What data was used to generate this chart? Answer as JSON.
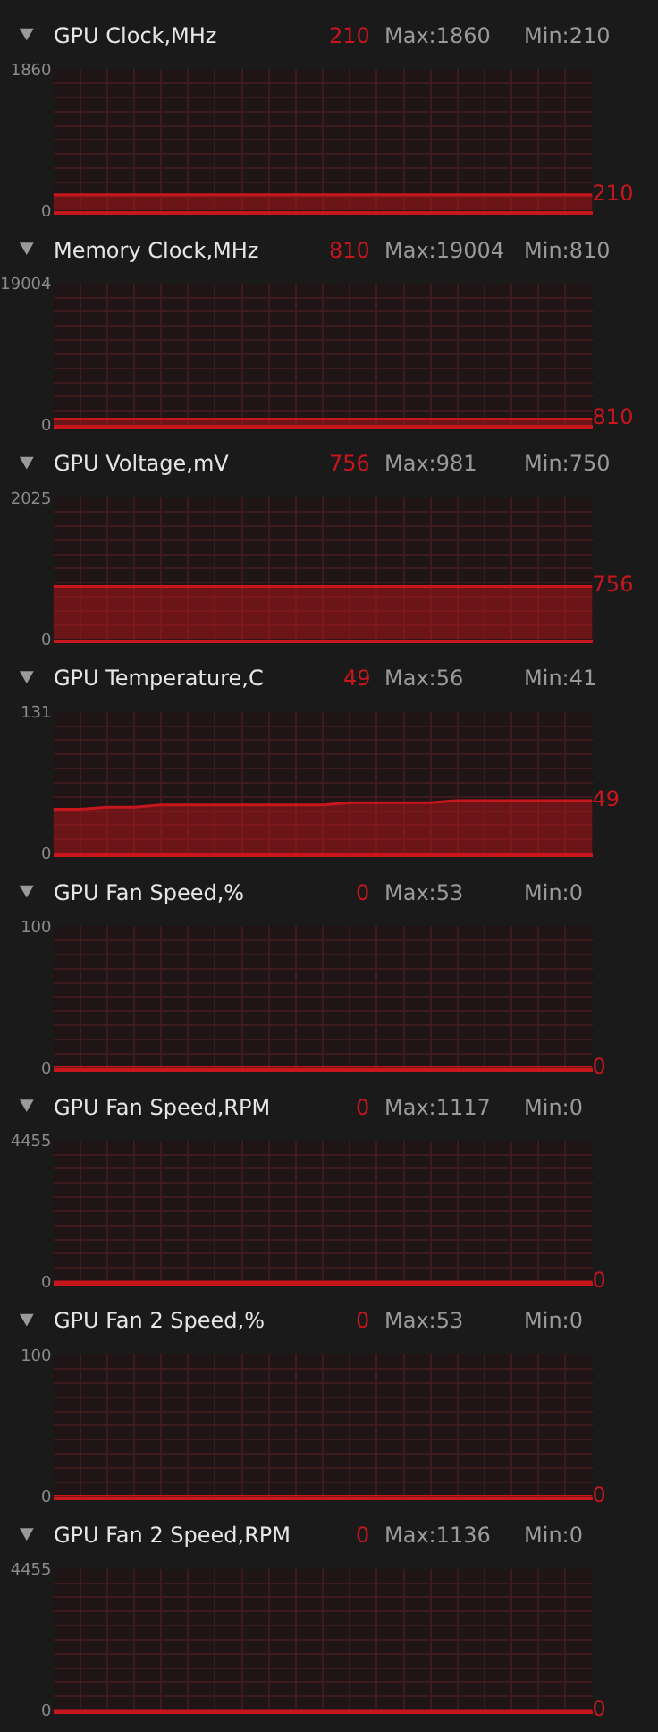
{
  "chart_data": [
    {
      "type": "area",
      "title": "GPU Clock,MHz",
      "annotations": [
        "210",
        "Max:1860",
        "Min:210"
      ],
      "categories": [
        null,
        null,
        null,
        null,
        null,
        null,
        null,
        null,
        null,
        null,
        null,
        null,
        null,
        null,
        null,
        null,
        null,
        null,
        null,
        null,
        null
      ],
      "values": [
        210,
        210,
        210,
        210,
        210,
        210,
        210,
        210,
        210,
        210,
        210,
        210,
        210,
        210,
        210,
        210,
        210,
        210,
        210,
        210,
        210
      ],
      "value_labels": [
        null,
        null,
        null,
        null,
        null,
        null,
        null,
        null,
        null,
        null,
        null,
        null,
        null,
        null,
        null,
        null,
        null,
        null,
        null,
        null,
        "210"
      ],
      "color": "#c8161d",
      "ylim": [
        0,
        1860
      ],
      "yticks": [
        0,
        {
          "value": 186,
          "label": null
        },
        {
          "value": 372,
          "label": null
        },
        {
          "value": 558,
          "label": null
        },
        {
          "value": 744,
          "label": null
        },
        {
          "value": 930,
          "label": null
        },
        {
          "value": 1116,
          "label": null
        },
        {
          "value": 1302,
          "label": null
        },
        {
          "value": 1488,
          "label": null
        },
        {
          "value": 1674,
          "label": null
        },
        1860
      ],
      "grid": true,
      "tick_labels": "y"
    },
    {
      "type": "area",
      "title": "Memory Clock,MHz",
      "annotations": [
        "810",
        "Max:19004",
        "Min:810"
      ],
      "categories": [
        null,
        null,
        null,
        null,
        null,
        null,
        null,
        null,
        null,
        null,
        null,
        null,
        null,
        null,
        null,
        null,
        null,
        null,
        null,
        null,
        null
      ],
      "values": [
        810,
        810,
        810,
        810,
        810,
        810,
        810,
        810,
        810,
        810,
        810,
        810,
        810,
        810,
        810,
        810,
        810,
        810,
        810,
        810,
        810
      ],
      "value_labels": [
        null,
        null,
        null,
        null,
        null,
        null,
        null,
        null,
        null,
        null,
        null,
        null,
        null,
        null,
        null,
        null,
        null,
        null,
        null,
        null,
        "810"
      ],
      "color": "#c8161d",
      "ylim": [
        0,
        19004
      ],
      "yticks": [
        0,
        {
          "value": 1900.4,
          "label": null
        },
        {
          "value": 3800.8,
          "label": null
        },
        {
          "value": 5701.2,
          "label": null
        },
        {
          "value": 7601.6,
          "label": null
        },
        {
          "value": 9502,
          "label": null
        },
        {
          "value": 11402.4,
          "label": null
        },
        {
          "value": 13302.8,
          "label": null
        },
        {
          "value": 15203.2,
          "label": null
        },
        {
          "value": 17103.6,
          "label": null
        },
        19004
      ],
      "grid": true,
      "tick_labels": "y"
    },
    {
      "type": "area",
      "title": "GPU Voltage,mV",
      "annotations": [
        "756",
        "Max:981",
        "Min:750"
      ],
      "categories": [
        null,
        null,
        null,
        null,
        null,
        null,
        null,
        null,
        null,
        null,
        null,
        null,
        null,
        null,
        null,
        null,
        null,
        null,
        null,
        null,
        null
      ],
      "values": [
        756,
        756,
        756,
        756,
        756,
        756,
        756,
        756,
        756,
        756,
        756,
        756,
        756,
        756,
        756,
        756,
        756,
        756,
        756,
        756,
        756
      ],
      "value_labels": [
        null,
        null,
        null,
        null,
        null,
        null,
        null,
        null,
        null,
        null,
        null,
        null,
        null,
        null,
        null,
        null,
        null,
        null,
        null,
        null,
        "756"
      ],
      "color": "#c8161d",
      "ylim": [
        0,
        2025
      ],
      "yticks": [
        0,
        {
          "value": 202.5,
          "label": null
        },
        {
          "value": 405,
          "label": null
        },
        {
          "value": 607.5,
          "label": null
        },
        {
          "value": 810,
          "label": null
        },
        {
          "value": 1012.5,
          "label": null
        },
        {
          "value": 1215,
          "label": null
        },
        {
          "value": 1417.5,
          "label": null
        },
        {
          "value": 1620,
          "label": null
        },
        {
          "value": 1822.5,
          "label": null
        },
        2025
      ],
      "grid": true,
      "tick_labels": "y"
    },
    {
      "type": "area",
      "title": "GPU Temperature,C",
      "annotations": [
        "49",
        "Max:56",
        "Min:41"
      ],
      "categories": [
        null,
        null,
        null,
        null,
        null,
        null,
        null,
        null,
        null,
        null,
        null,
        null,
        null,
        null,
        null,
        null,
        null,
        null,
        null,
        null,
        null
      ],
      "values": [
        41,
        41,
        43,
        43,
        45,
        45,
        45,
        45,
        45,
        45,
        45,
        47,
        47,
        47,
        47,
        49,
        49,
        49,
        49,
        49,
        49
      ],
      "value_labels": [
        null,
        null,
        null,
        null,
        null,
        null,
        null,
        null,
        null,
        null,
        null,
        null,
        null,
        null,
        null,
        null,
        null,
        null,
        null,
        null,
        "49"
      ],
      "color": "#c8161d",
      "ylim": [
        0,
        131
      ],
      "yticks": [
        0,
        {
          "value": 13.1,
          "label": null
        },
        {
          "value": 26.2,
          "label": null
        },
        {
          "value": 39.3,
          "label": null
        },
        {
          "value": 52.4,
          "label": null
        },
        {
          "value": 65.5,
          "label": null
        },
        {
          "value": 78.6,
          "label": null
        },
        {
          "value": 91.7,
          "label": null
        },
        {
          "value": 104.8,
          "label": null
        },
        {
          "value": 117.9,
          "label": null
        },
        131
      ],
      "grid": true,
      "tick_labels": "y"
    },
    {
      "type": "line",
      "title": "GPU Fan Speed,%",
      "annotations": [
        "0",
        "Max:53",
        "Min:0"
      ],
      "categories": [
        null,
        null,
        null,
        null,
        null,
        null,
        null,
        null,
        null,
        null,
        null,
        null,
        null,
        null,
        null,
        null,
        null,
        null,
        null,
        null,
        null
      ],
      "values": [
        0,
        0,
        0,
        0,
        0,
        0,
        0,
        0,
        0,
        0,
        0,
        0,
        0,
        0,
        0,
        0,
        0,
        0,
        0,
        0,
        0
      ],
      "value_labels": [
        null,
        null,
        null,
        null,
        null,
        null,
        null,
        null,
        null,
        null,
        null,
        null,
        null,
        null,
        null,
        null,
        null,
        null,
        null,
        null,
        "0"
      ],
      "color": "#c8161d",
      "ylim": [
        0,
        100
      ],
      "yticks": [
        0,
        {
          "value": 10,
          "label": null
        },
        {
          "value": 20,
          "label": null
        },
        {
          "value": 30,
          "label": null
        },
        {
          "value": 40,
          "label": null
        },
        {
          "value": 50,
          "label": null
        },
        {
          "value": 60,
          "label": null
        },
        {
          "value": 70,
          "label": null
        },
        {
          "value": 80,
          "label": null
        },
        {
          "value": 90,
          "label": null
        },
        100
      ],
      "grid": true,
      "tick_labels": "y"
    },
    {
      "type": "line",
      "title": "GPU Fan Speed,RPM",
      "annotations": [
        "0",
        "Max:1117",
        "Min:0"
      ],
      "categories": [
        null,
        null,
        null,
        null,
        null,
        null,
        null,
        null,
        null,
        null,
        null,
        null,
        null,
        null,
        null,
        null,
        null,
        null,
        null,
        null,
        null
      ],
      "values": [
        0,
        0,
        0,
        0,
        0,
        0,
        0,
        0,
        0,
        0,
        0,
        0,
        0,
        0,
        0,
        0,
        0,
        0,
        0,
        0,
        0
      ],
      "value_labels": [
        null,
        null,
        null,
        null,
        null,
        null,
        null,
        null,
        null,
        null,
        null,
        null,
        null,
        null,
        null,
        null,
        null,
        null,
        null,
        null,
        "0"
      ],
      "color": "#c8161d",
      "ylim": [
        0,
        4455
      ],
      "yticks": [
        0,
        {
          "value": 445.5,
          "label": null
        },
        {
          "value": 891,
          "label": null
        },
        {
          "value": 1336.5,
          "label": null
        },
        {
          "value": 1782,
          "label": null
        },
        {
          "value": 2227.5,
          "label": null
        },
        {
          "value": 2673,
          "label": null
        },
        {
          "value": 3118.5,
          "label": null
        },
        {
          "value": 3564,
          "label": null
        },
        {
          "value": 4009.5,
          "label": null
        },
        4455
      ],
      "grid": true,
      "tick_labels": "y"
    },
    {
      "type": "line",
      "title": "GPU Fan 2 Speed,%",
      "annotations": [
        "0",
        "Max:53",
        "Min:0"
      ],
      "categories": [
        null,
        null,
        null,
        null,
        null,
        null,
        null,
        null,
        null,
        null,
        null,
        null,
        null,
        null,
        null,
        null,
        null,
        null,
        null,
        null,
        null
      ],
      "values": [
        0,
        0,
        0,
        0,
        0,
        0,
        0,
        0,
        0,
        0,
        0,
        0,
        0,
        0,
        0,
        0,
        0,
        0,
        0,
        0,
        0
      ],
      "value_labels": [
        null,
        null,
        null,
        null,
        null,
        null,
        null,
        null,
        null,
        null,
        null,
        null,
        null,
        null,
        null,
        null,
        null,
        null,
        null,
        null,
        "0"
      ],
      "color": "#c8161d",
      "ylim": [
        0,
        100
      ],
      "yticks": [
        0,
        {
          "value": 10,
          "label": null
        },
        {
          "value": 20,
          "label": null
        },
        {
          "value": 30,
          "label": null
        },
        {
          "value": 40,
          "label": null
        },
        {
          "value": 50,
          "label": null
        },
        {
          "value": 60,
          "label": null
        },
        {
          "value": 70,
          "label": null
        },
        {
          "value": 80,
          "label": null
        },
        {
          "value": 90,
          "label": null
        },
        100
      ],
      "grid": true,
      "tick_labels": "y"
    },
    {
      "type": "line",
      "title": "GPU Fan 2 Speed,RPM",
      "annotations": [
        "0",
        "Max:1136",
        "Min:0"
      ],
      "categories": [
        null,
        null,
        null,
        null,
        null,
        null,
        null,
        null,
        null,
        null,
        null,
        null,
        null,
        null,
        null,
        null,
        null,
        null,
        null,
        null,
        null
      ],
      "values": [
        0,
        0,
        0,
        0,
        0,
        0,
        0,
        0,
        0,
        0,
        0,
        0,
        0,
        0,
        0,
        0,
        0,
        0,
        0,
        0,
        0
      ],
      "value_labels": [
        null,
        null,
        null,
        null,
        null,
        null,
        null,
        null,
        null,
        null,
        null,
        null,
        null,
        null,
        null,
        null,
        null,
        null,
        null,
        null,
        "0"
      ],
      "color": "#c8161d",
      "ylim": [
        0,
        4455
      ],
      "yticks": [
        0,
        {
          "value": 445.5,
          "label": null
        },
        {
          "value": 891,
          "label": null
        },
        {
          "value": 1336.5,
          "label": null
        },
        {
          "value": 1782,
          "label": null
        },
        {
          "value": 2227.5,
          "label": null
        },
        {
          "value": 2673,
          "label": null
        },
        {
          "value": 3118.5,
          "label": null
        },
        {
          "value": 3564,
          "label": null
        },
        {
          "value": 4009.5,
          "label": null
        },
        4455
      ],
      "grid": true,
      "tick_labels": "y"
    }
  ]
}
